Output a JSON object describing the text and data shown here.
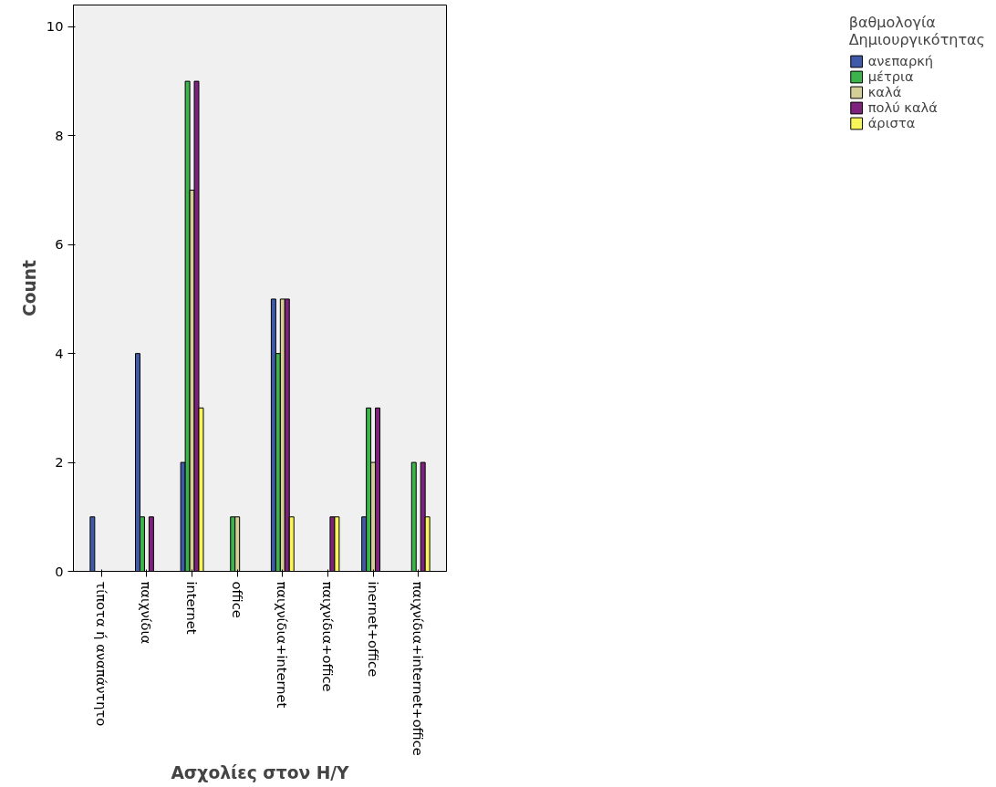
{
  "chart_data": {
    "type": "bar",
    "xlabel": "Ασχολίες στον Η/Υ",
    "ylabel": "Count",
    "legend_title": "βαθμολογία\nΔημιουργικότητας",
    "categories": [
      "τίποτα ή αναπάντητο",
      "παιχνίδια",
      "internet",
      "office",
      "παιχνίδια+internet",
      "παιχνίδια+office",
      "inernet+office",
      "παιχνίδια+internet+office"
    ],
    "series": [
      {
        "name": "ανεπαρκή",
        "color": "#3e5aa8",
        "values": [
          1,
          4,
          2,
          null,
          5,
          null,
          1,
          null
        ]
      },
      {
        "name": "μέτρια",
        "color": "#3cb44b",
        "values": [
          null,
          1,
          9,
          1,
          4,
          null,
          3,
          2
        ]
      },
      {
        "name": "καλά",
        "color": "#d4cf96",
        "values": [
          null,
          null,
          7,
          1,
          5,
          null,
          2,
          null
        ]
      },
      {
        "name": "πολύ καλά",
        "color": "#7d237e",
        "values": [
          null,
          1,
          9,
          null,
          5,
          1,
          3,
          2
        ]
      },
      {
        "name": "άριστα",
        "color": "#f7f55a",
        "values": [
          null,
          null,
          3,
          null,
          1,
          1,
          null,
          1
        ]
      }
    ],
    "ylim": [
      0,
      10.4
    ],
    "yticks": [
      0,
      2,
      4,
      6,
      8,
      10
    ],
    "grid": false,
    "legend": "right"
  }
}
